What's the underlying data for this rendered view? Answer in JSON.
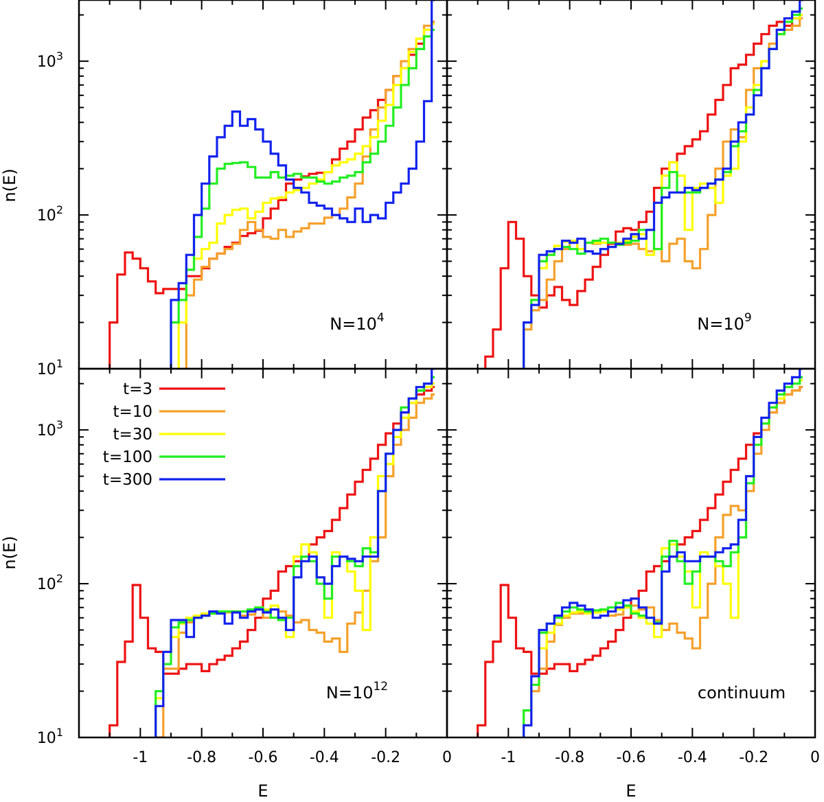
{
  "chart_data": {
    "type": "line",
    "ylabel": "n(E)",
    "xlabel": "E",
    "x_ticks": [
      "-1",
      "-0.8",
      "-0.6",
      "-0.4",
      "-0.2",
      "0"
    ],
    "y_ticks": [
      {
        "base": "10",
        "exp": "1"
      },
      {
        "base": "10",
        "exp": "2"
      },
      {
        "base": "10",
        "exp": "3"
      }
    ],
    "xlim": [
      -1.2,
      0.0
    ],
    "ylim": [
      10,
      2500
    ],
    "y_scale": "log",
    "legend": [
      {
        "label": "t=3",
        "color": "#ee1111"
      },
      {
        "label": "t=10",
        "color": "#f5a02a"
      },
      {
        "label": "t=30",
        "color": "#ffff00"
      },
      {
        "label": "t=100",
        "color": "#22ee22"
      },
      {
        "label": "t=300",
        "color": "#1122ee"
      }
    ],
    "edges": [
      -1.1,
      -1.075,
      -1.05,
      -1.025,
      -1.0,
      -0.975,
      -0.95,
      -0.925,
      -0.9,
      -0.875,
      -0.85,
      -0.825,
      -0.8,
      -0.775,
      -0.75,
      -0.725,
      -0.7,
      -0.675,
      -0.65,
      -0.625,
      -0.6,
      -0.575,
      -0.55,
      -0.525,
      -0.5,
      -0.475,
      -0.45,
      -0.425,
      -0.4,
      -0.375,
      -0.35,
      -0.325,
      -0.3,
      -0.275,
      -0.25,
      -0.225,
      -0.2,
      -0.175,
      -0.15,
      -0.125,
      -0.1,
      -0.075,
      -0.05,
      -0.04
    ],
    "panels": [
      {
        "label_prefix": "N=10",
        "label_exp": "4",
        "series": [
          {
            "name": "t=3",
            "values": [
              20,
              41,
              57,
              52,
              45,
              37,
              31,
              33,
              33,
              33,
              40,
              40,
              45,
              52,
              56,
              62,
              66,
              73,
              76,
              79,
              95,
              110,
              125,
              160,
              170,
              178,
              185,
              188,
              190,
              230,
              270,
              300,
              360,
              430,
              480,
              560,
              650,
              800,
              900,
              1100,
              1300,
              1600,
              1800
            ]
          },
          {
            "name": "t=10",
            "values": [
              null,
              null,
              null,
              null,
              null,
              null,
              null,
              null,
              null,
              null,
              30,
              38,
              46,
              52,
              56,
              60,
              65,
              80,
              90,
              80,
              72,
              70,
              80,
              72,
              78,
              82,
              88,
              88,
              96,
              100,
              110,
              130,
              160,
              240,
              360,
              500,
              650,
              800,
              1000,
              1200,
              1400,
              1700,
              1800
            ]
          },
          {
            "name": "t=30",
            "values": [
              null,
              null,
              null,
              null,
              null,
              null,
              null,
              null,
              null,
              20,
              44,
              52,
              60,
              66,
              88,
              100,
              108,
              110,
              95,
              105,
              120,
              128,
              130,
              140,
              145,
              150,
              160,
              170,
              190,
              210,
              220,
              230,
              250,
              280,
              320,
              410,
              520,
              700,
              900,
              1150,
              1400,
              1600,
              1750
            ]
          },
          {
            "name": "t=100",
            "values": [
              null,
              null,
              null,
              null,
              null,
              null,
              null,
              null,
              20,
              28,
              44,
              72,
              110,
              160,
              200,
              215,
              218,
              220,
              205,
              175,
              175,
              190,
              175,
              180,
              185,
              175,
              175,
              165,
              160,
              165,
              175,
              180,
              190,
              220,
              250,
              300,
              380,
              500,
              700,
              900,
              1200,
              1450,
              1600
            ]
          },
          {
            "name": "t=300",
            "values": [
              null,
              null,
              null,
              null,
              null,
              null,
              null,
              null,
              28,
              36,
              55,
              100,
              160,
              240,
              320,
              380,
              470,
              380,
              420,
              360,
              300,
              250,
              210,
              170,
              150,
              140,
              120,
              115,
              110,
              100,
              95,
              90,
              110,
              90,
              100,
              95,
              120,
              140,
              160,
              200,
              300,
              550,
              2500
            ]
          }
        ]
      },
      {
        "label_prefix": "N=10",
        "label_exp": "9",
        "series": [
          {
            "name": "t=3",
            "values": [
              null,
              12,
              18,
              45,
              90,
              70,
              40,
              30,
              25,
              30,
              34,
              28,
              26,
              32,
              38,
              46,
              55,
              65,
              78,
              82,
              80,
              90,
              105,
              150,
              200,
              220,
              250,
              280,
              310,
              350,
              450,
              560,
              700,
              900,
              950,
              1100,
              1300,
              1500,
              1700,
              1800,
              1700,
              1900,
              2000
            ]
          },
          {
            "name": "t=10",
            "values": [
              null,
              null,
              null,
              null,
              null,
              null,
              18,
              24,
              28,
              38,
              50,
              60,
              67,
              60,
              66,
              65,
              66,
              66,
              64,
              64,
              65,
              60,
              58,
              60,
              50,
              65,
              70,
              50,
              45,
              60,
              100,
              200,
              300,
              360,
              320,
              650,
              900,
              1000,
              1300,
              1500,
              1600,
              1700,
              1900
            ]
          },
          {
            "name": "t=30",
            "values": [
              null,
              null,
              null,
              null,
              null,
              null,
              20,
              28,
              45,
              55,
              63,
              67,
              68,
              60,
              66,
              66,
              66,
              66,
              66,
              68,
              72,
              75,
              55,
              60,
              180,
              220,
              180,
              80,
              150,
              160,
              150,
              120,
              180,
              200,
              300,
              500,
              700,
              1000,
              1200,
              1500,
              1800,
              1900,
              2000
            ]
          },
          {
            "name": "t=100",
            "values": [
              null,
              null,
              null,
              null,
              null,
              null,
              20,
              28,
              50,
              55,
              60,
              62,
              60,
              56,
              66,
              68,
              70,
              66,
              64,
              66,
              68,
              80,
              80,
              60,
              150,
              190,
              140,
              140,
              140,
              150,
              160,
              170,
              190,
              280,
              350,
              450,
              650,
              900,
              1200,
              1500,
              1800,
              2000,
              2200
            ]
          },
          {
            "name": "t=300",
            "values": [
              null,
              null,
              null,
              null,
              null,
              null,
              20,
              26,
              55,
              58,
              60,
              68,
              66,
              70,
              58,
              56,
              60,
              62,
              65,
              70,
              75,
              70,
              80,
              120,
              130,
              140,
              140,
              150,
              145,
              150,
              160,
              170,
              200,
              300,
              400,
              450,
              600,
              900,
              1200,
              1600,
              1900,
              2100,
              2500
            ]
          }
        ]
      },
      {
        "label_prefix": "N=10",
        "label_exp": "12",
        "series": [
          {
            "name": "t=3",
            "values": [
              12,
              31,
              42,
              98,
              60,
              38,
              36,
              26,
              26,
              28,
              30,
              30,
              27,
              30,
              32,
              34,
              38,
              42,
              50,
              60,
              80,
              90,
              120,
              130,
              140,
              150,
              180,
              200,
              220,
              260,
              310,
              380,
              460,
              550,
              650,
              800,
              950,
              1100,
              1300,
              1500,
              1700,
              1800,
              1900
            ]
          },
          {
            "name": "t=10",
            "values": [
              null,
              null,
              null,
              null,
              null,
              null,
              10,
              28,
              28,
              48,
              56,
              60,
              62,
              64,
              65,
              65,
              66,
              62,
              63,
              68,
              60,
              68,
              66,
              62,
              56,
              58,
              50,
              48,
              42,
              44,
              36,
              55,
              65,
              90,
              140,
              200,
              500,
              800,
              1000,
              1200,
              1500,
              1600,
              1700
            ]
          },
          {
            "name": "t=30",
            "values": [
              null,
              null,
              null,
              null,
              null,
              null,
              18,
              36,
              45,
              55,
              60,
              62,
              64,
              65,
              66,
              66,
              66,
              66,
              68,
              70,
              68,
              72,
              60,
              45,
              150,
              180,
              160,
              110,
              60,
              160,
              150,
              120,
              90,
              50,
              200,
              500,
              600,
              900,
              1200,
              1500,
              1800,
              1900,
              2000
            ]
          },
          {
            "name": "t=100",
            "values": [
              null,
              null,
              null,
              null,
              null,
              null,
              20,
              30,
              52,
              56,
              58,
              60,
              62,
              64,
              66,
              66,
              66,
              66,
              68,
              70,
              66,
              60,
              58,
              60,
              130,
              150,
              140,
              100,
              80,
              150,
              150,
              140,
              130,
              170,
              160,
              400,
              700,
              1000,
              1400,
              1600,
              1800,
              2000,
              2200
            ]
          },
          {
            "name": "t=300",
            "values": [
              null,
              null,
              null,
              null,
              null,
              null,
              16,
              36,
              58,
              58,
              45,
              60,
              62,
              66,
              64,
              55,
              65,
              60,
              66,
              68,
              65,
              68,
              60,
              50,
              110,
              140,
              150,
              110,
              100,
              130,
              150,
              145,
              140,
              150,
              150,
              400,
              700,
              1000,
              1300,
              1600,
              1900,
              2000,
              2500
            ]
          }
        ]
      },
      {
        "label": "continuum",
        "series": [
          {
            "name": "t=3",
            "values": [
              12,
              31,
              42,
              98,
              60,
              38,
              36,
              26,
              26,
              28,
              30,
              30,
              27,
              30,
              32,
              34,
              38,
              42,
              50,
              60,
              80,
              90,
              120,
              130,
              140,
              150,
              180,
              200,
              220,
              260,
              310,
              380,
              460,
              550,
              650,
              800,
              950,
              1100,
              1300,
              1500,
              1700,
              1800,
              1900
            ]
          },
          {
            "name": "t=10",
            "values": [
              null,
              null,
              null,
              null,
              null,
              null,
              12,
              20,
              28,
              42,
              54,
              60,
              64,
              64,
              65,
              65,
              66,
              62,
              63,
              70,
              72,
              68,
              70,
              58,
              50,
              55,
              48,
              44,
              38,
              60,
              100,
              200,
              280,
              320,
              300,
              400,
              700,
              1000,
              1300,
              1500,
              1700,
              1800,
              1900
            ]
          },
          {
            "name": "t=30",
            "values": [
              null,
              null,
              null,
              null,
              null,
              null,
              15,
              22,
              38,
              48,
              55,
              62,
              65,
              66,
              64,
              65,
              66,
              66,
              68,
              70,
              66,
              60,
              55,
              45,
              170,
              180,
              150,
              120,
              70,
              160,
              150,
              130,
              100,
              60,
              200,
              500,
              800,
              1100,
              1400,
              1600,
              1900,
              2000,
              2100
            ]
          },
          {
            "name": "t=100",
            "values": [
              null,
              null,
              null,
              null,
              null,
              null,
              15,
              22,
              48,
              55,
              60,
              66,
              70,
              68,
              66,
              67,
              68,
              70,
              75,
              72,
              64,
              62,
              60,
              56,
              150,
              190,
              140,
              100,
              120,
              150,
              150,
              140,
              130,
              160,
              200,
              450,
              800,
              1100,
              1400,
              1700,
              1900,
              2000,
              2200
            ]
          },
          {
            "name": "t=300",
            "values": [
              null,
              null,
              null,
              null,
              null,
              null,
              12,
              25,
              50,
              55,
              62,
              70,
              75,
              72,
              68,
              60,
              62,
              66,
              70,
              78,
              80,
              70,
              60,
              55,
              120,
              150,
              160,
              140,
              140,
              150,
              150,
              160,
              170,
              180,
              260,
              500,
              900,
              1200,
              1500,
              1800,
              2000,
              2200,
              2500
            ]
          }
        ]
      }
    ]
  }
}
